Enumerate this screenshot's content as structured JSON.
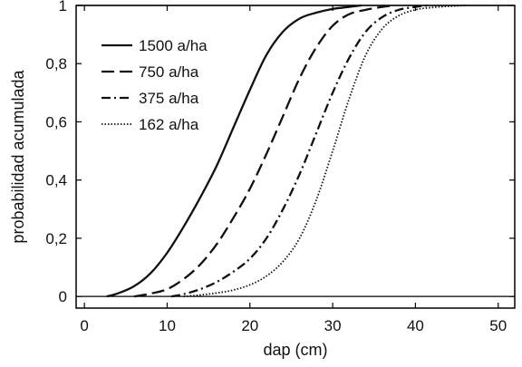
{
  "chart_data": {
    "type": "line",
    "title": "",
    "xlabel": "dap (cm)",
    "ylabel": "probabilidad acumulada",
    "xlim": [
      -1,
      52
    ],
    "ylim": [
      -0.04,
      1.0
    ],
    "xticks": [
      {
        "value": 0,
        "label": "0"
      },
      {
        "value": 10,
        "label": "10"
      },
      {
        "value": 20,
        "label": "20"
      },
      {
        "value": 30,
        "label": "30"
      },
      {
        "value": 40,
        "label": "40"
      },
      {
        "value": 50,
        "label": "50"
      }
    ],
    "yticks": [
      {
        "value": 0,
        "label": "0"
      },
      {
        "value": 0.2,
        "label": "0,2"
      },
      {
        "value": 0.4,
        "label": "0,4"
      },
      {
        "value": 0.6,
        "label": "0,6"
      },
      {
        "value": 0.8,
        "label": "0,8"
      },
      {
        "value": 1.0,
        "label": "1"
      }
    ],
    "reference_lines": [
      0,
      1
    ],
    "grid": false,
    "legend_position": "top-left",
    "series": [
      {
        "name": "1500 a/ha",
        "dash": "solid",
        "x": [
          2.7,
          4,
          6,
          8,
          10,
          12,
          14,
          16,
          18,
          20,
          22,
          24,
          26,
          28,
          30,
          32,
          33.5
        ],
        "y": [
          0,
          0.01,
          0.035,
          0.08,
          0.15,
          0.24,
          0.34,
          0.45,
          0.58,
          0.71,
          0.83,
          0.91,
          0.955,
          0.975,
          0.988,
          0.995,
          1.0
        ]
      },
      {
        "name": "750 a/ha",
        "dash": "long-dash",
        "x": [
          6,
          8,
          10,
          12,
          14,
          16,
          18,
          20,
          22,
          24,
          26,
          28,
          30,
          32,
          34,
          36,
          37.5
        ],
        "y": [
          0,
          0.01,
          0.025,
          0.06,
          0.11,
          0.18,
          0.27,
          0.37,
          0.49,
          0.62,
          0.75,
          0.855,
          0.93,
          0.97,
          0.985,
          0.995,
          1.0
        ]
      },
      {
        "name": "375 a/ha",
        "dash": "dash-dot",
        "x": [
          10.5,
          12,
          14,
          16,
          18,
          20,
          22,
          24,
          26,
          28,
          30,
          32,
          34,
          36,
          38,
          40,
          41.5
        ],
        "y": [
          0,
          0.008,
          0.025,
          0.05,
          0.085,
          0.13,
          0.2,
          0.3,
          0.42,
          0.56,
          0.7,
          0.82,
          0.91,
          0.96,
          0.985,
          0.995,
          1.0
        ]
      },
      {
        "name": "162 a/ha",
        "dash": "dotted",
        "x": [
          12,
          14,
          16,
          18,
          20,
          22,
          24,
          26,
          28,
          30,
          32,
          34,
          36,
          38,
          40,
          42,
          44,
          46
        ],
        "y": [
          0,
          0.005,
          0.012,
          0.022,
          0.04,
          0.07,
          0.12,
          0.2,
          0.33,
          0.5,
          0.68,
          0.83,
          0.92,
          0.965,
          0.985,
          0.993,
          0.997,
          1.0
        ]
      }
    ]
  }
}
